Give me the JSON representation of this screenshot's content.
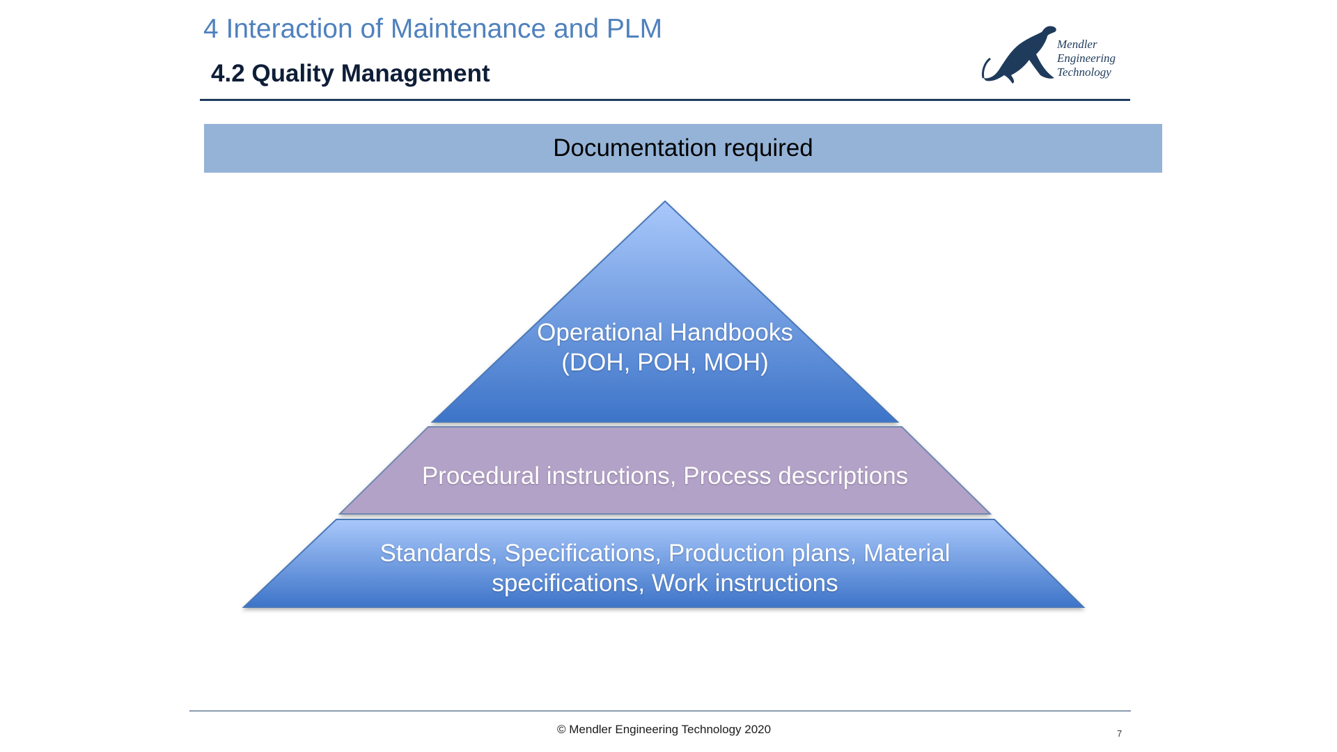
{
  "header": {
    "chapter_title": "4 Interaction of Maintenance and PLM",
    "section_title": "4.2  Quality Management"
  },
  "logo": {
    "line1": "Mendler",
    "line2": "Engineering",
    "line3": "Technology",
    "icon": "leaping-cat-icon",
    "color": "#1f3b5c"
  },
  "banner": {
    "text": "Documentation required",
    "color": "#95b3d7"
  },
  "pyramid": {
    "tiers": [
      {
        "label": "Operational Handbooks (DOH, POH, MOH)",
        "color": "#5b8fd9"
      },
      {
        "label": "Procedural instructions, Process descriptions",
        "color": "#b3a2c7"
      },
      {
        "label": "Standards, Specifications, Production plans, Material specifications, Work instructions",
        "color": "#5b8fd9"
      }
    ]
  },
  "footer": {
    "copyright": "© Mendler Engineering Technology 2020",
    "page_number": "7"
  }
}
